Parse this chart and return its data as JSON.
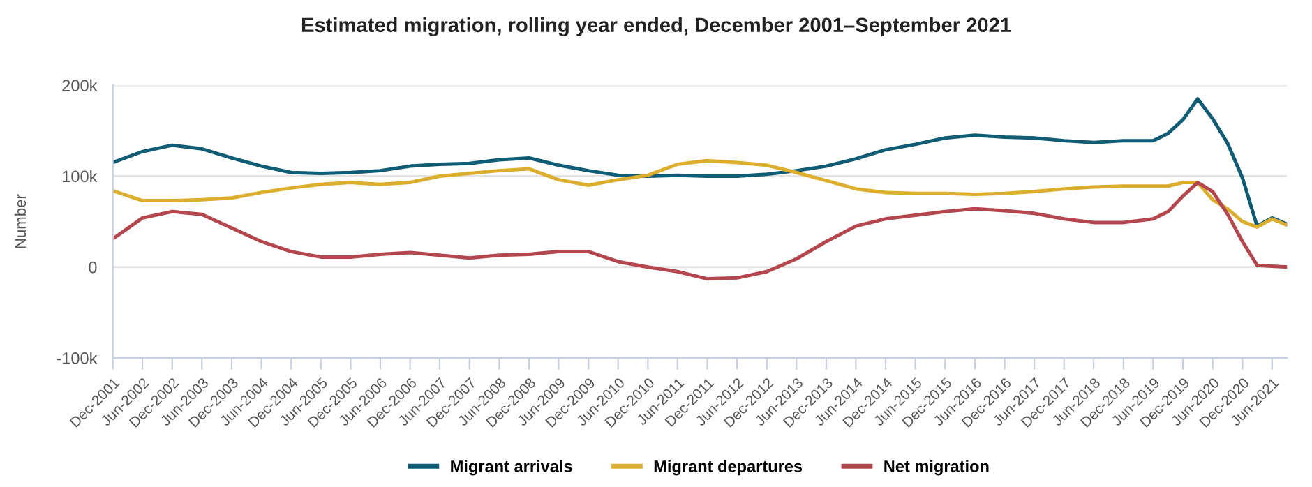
{
  "chart_data": {
    "type": "line",
    "title": "Estimated migration, rolling year ended, December 2001–September 2021",
    "ylabel": "Number",
    "x": [
      "2001-12",
      "2002-06",
      "2002-12",
      "2003-06",
      "2003-12",
      "2004-06",
      "2004-12",
      "2005-06",
      "2005-12",
      "2006-06",
      "2006-12",
      "2007-06",
      "2007-12",
      "2008-06",
      "2008-12",
      "2009-06",
      "2009-12",
      "2010-06",
      "2010-12",
      "2011-06",
      "2011-12",
      "2012-06",
      "2012-12",
      "2013-06",
      "2013-12",
      "2014-06",
      "2014-12",
      "2015-06",
      "2015-12",
      "2016-06",
      "2016-12",
      "2017-06",
      "2017-12",
      "2018-06",
      "2018-12",
      "2019-06",
      "2019-09",
      "2019-12",
      "2020-03",
      "2020-06",
      "2020-09",
      "2020-12",
      "2021-03",
      "2021-06",
      "2021-09"
    ],
    "series": [
      {
        "name": "Migrant arrivals",
        "color": "#0f5c74",
        "values": [
          115000,
          127000,
          134000,
          130000,
          120000,
          111000,
          104000,
          103000,
          104000,
          106000,
          111000,
          113000,
          114000,
          118000,
          120000,
          112000,
          106000,
          101000,
          100000,
          101000,
          100000,
          100000,
          102000,
          106000,
          111000,
          119000,
          129000,
          135000,
          142000,
          145000,
          143000,
          142000,
          139000,
          137000,
          139000,
          139000,
          147000,
          162000,
          185000,
          163000,
          136000,
          98000,
          45000,
          54000,
          47000
        ]
      },
      {
        "name": "Migrant departures",
        "color": "#dcae2e",
        "values": [
          84000,
          73000,
          73000,
          74000,
          76000,
          82000,
          87000,
          91000,
          93000,
          91000,
          93000,
          100000,
          103000,
          106000,
          108000,
          96000,
          90000,
          96000,
          101000,
          113000,
          117000,
          115000,
          112000,
          104000,
          95000,
          86000,
          82000,
          81000,
          81000,
          80000,
          81000,
          83000,
          86000,
          88000,
          89000,
          89000,
          89000,
          93000,
          93000,
          74000,
          64000,
          50000,
          44000,
          53000,
          46000
        ]
      },
      {
        "name": "Net migration",
        "color": "#b4464e",
        "values": [
          31000,
          54000,
          61000,
          58000,
          43000,
          28000,
          17000,
          11000,
          11000,
          14000,
          16000,
          13000,
          10000,
          13000,
          14000,
          17000,
          17000,
          6000,
          0,
          -5000,
          -13000,
          -12000,
          -5000,
          9000,
          28000,
          45000,
          53000,
          57000,
          61000,
          64000,
          62000,
          59000,
          53000,
          49000,
          49000,
          53000,
          61000,
          78000,
          93000,
          83000,
          58000,
          28000,
          2000,
          1000,
          0
        ]
      }
    ],
    "xlim": [
      "2001-12",
      "2021-09"
    ],
    "xticks": [
      {
        "value": "2001-12",
        "label": "Dec-2001"
      },
      {
        "value": "2002-06",
        "label": "Jun-2002"
      },
      {
        "value": "2002-12",
        "label": "Dec-2002"
      },
      {
        "value": "2003-06",
        "label": "Jun-2003"
      },
      {
        "value": "2003-12",
        "label": "Dec-2003"
      },
      {
        "value": "2004-06",
        "label": "Jun-2004"
      },
      {
        "value": "2004-12",
        "label": "Dec-2004"
      },
      {
        "value": "2005-06",
        "label": "Jun-2005"
      },
      {
        "value": "2005-12",
        "label": "Dec-2005"
      },
      {
        "value": "2006-06",
        "label": "Jun-2006"
      },
      {
        "value": "2006-12",
        "label": "Dec-2006"
      },
      {
        "value": "2007-06",
        "label": "Jun-2007"
      },
      {
        "value": "2007-12",
        "label": "Dec-2007"
      },
      {
        "value": "2008-06",
        "label": "Jun-2008"
      },
      {
        "value": "2008-12",
        "label": "Dec-2008"
      },
      {
        "value": "2009-06",
        "label": "Jun-2009"
      },
      {
        "value": "2009-12",
        "label": "Dec-2009"
      },
      {
        "value": "2010-06",
        "label": "Jun-2010"
      },
      {
        "value": "2010-12",
        "label": "Dec-2010"
      },
      {
        "value": "2011-06",
        "label": "Jun-2011"
      },
      {
        "value": "2011-12",
        "label": "Dec-2011"
      },
      {
        "value": "2012-06",
        "label": "Jun-2012"
      },
      {
        "value": "2012-12",
        "label": "Dec-2012"
      },
      {
        "value": "2013-06",
        "label": "Jun-2013"
      },
      {
        "value": "2013-12",
        "label": "Dec-2013"
      },
      {
        "value": "2014-06",
        "label": "Jun-2014"
      },
      {
        "value": "2014-12",
        "label": "Dec-2014"
      },
      {
        "value": "2015-06",
        "label": "Jun-2015"
      },
      {
        "value": "2015-12",
        "label": "Dec-2015"
      },
      {
        "value": "2016-06",
        "label": "Jun-2016"
      },
      {
        "value": "2016-12",
        "label": "Dec-2016"
      },
      {
        "value": "2017-06",
        "label": "Jun-2017"
      },
      {
        "value": "2017-12",
        "label": "Dec-2017"
      },
      {
        "value": "2018-06",
        "label": "Jun-2018"
      },
      {
        "value": "2018-12",
        "label": "Dec-2018"
      },
      {
        "value": "2019-06",
        "label": "Jun-2019"
      },
      {
        "value": "2019-12",
        "label": "Dec-2019"
      },
      {
        "value": "2020-06",
        "label": "Jun-2020"
      },
      {
        "value": "2020-12",
        "label": "Dec-2020"
      },
      {
        "value": "2021-06",
        "label": "Jun-2021"
      }
    ],
    "ylim": [
      -100000,
      200000
    ],
    "yticks": [
      {
        "value": -100000,
        "label": "-100k"
      },
      {
        "value": 0,
        "label": "0"
      },
      {
        "value": 100000,
        "label": "100k"
      },
      {
        "value": 200000,
        "label": "200k"
      }
    ],
    "grid": "y",
    "legend": "bottom",
    "marker": "none",
    "line_style": "solid"
  }
}
